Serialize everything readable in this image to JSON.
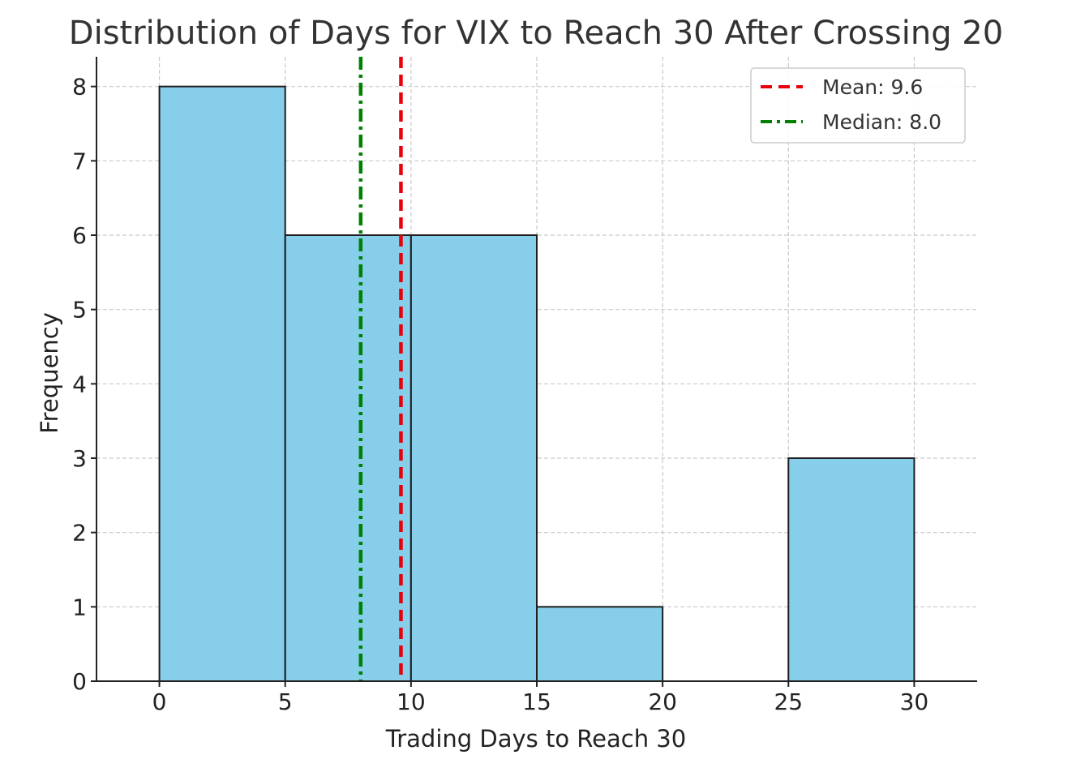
{
  "chart_data": {
    "type": "bar",
    "title": "Distribution of Days for VIX to Reach 30 After Crossing 20",
    "xlabel": "Trading Days to Reach 30",
    "ylabel": "Frequency",
    "bins": [
      {
        "start": 0,
        "end": 5,
        "value": 8
      },
      {
        "start": 5,
        "end": 10,
        "value": 6
      },
      {
        "start": 10,
        "end": 15,
        "value": 6
      },
      {
        "start": 15,
        "end": 20,
        "value": 1
      },
      {
        "start": 20,
        "end": 25,
        "value": 0
      },
      {
        "start": 25,
        "end": 30,
        "value": 3
      }
    ],
    "xlim": [
      -2.5,
      32.5
    ],
    "ylim": [
      0,
      8.4
    ],
    "xticks": [
      0,
      5,
      10,
      15,
      20,
      25,
      30
    ],
    "yticks": [
      0,
      1,
      2,
      3,
      4,
      5,
      6,
      7,
      8
    ],
    "grid": true,
    "bar_color": "#87ceeb",
    "bar_edge_color": "#1e1e1e",
    "reference_lines": [
      {
        "label": "Mean: 9.6",
        "x": 9.6,
        "color": "#e8000b",
        "style": "dashed"
      },
      {
        "label": "Median: 8.0",
        "x": 8.0,
        "color": "#008000",
        "style": "dashdot"
      }
    ],
    "legend_position": "top-right"
  }
}
